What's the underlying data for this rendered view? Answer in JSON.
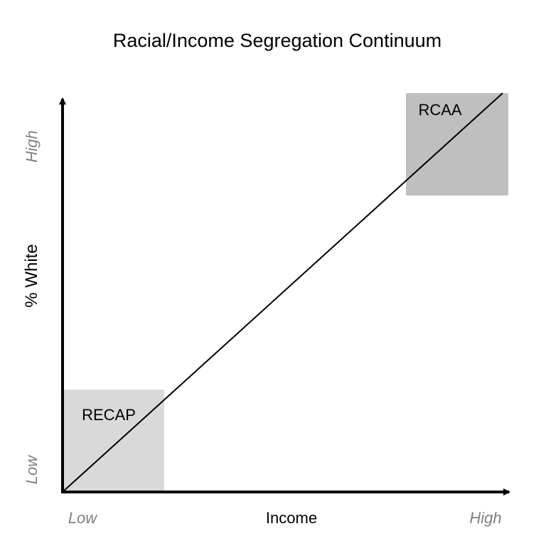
{
  "title": "Racial/Income Segregation Continuum",
  "axes": {
    "x_label": "Income",
    "y_label": "% White",
    "x_low": "Low",
    "x_high": "High",
    "y_low": "Low",
    "y_high": "High"
  },
  "regions": {
    "recap": {
      "label": "RECAP",
      "color": "#d9d9d9"
    },
    "rcaa": {
      "label": "RCAA",
      "color": "#bfbfbf"
    }
  },
  "colors": {
    "axis": "#000000",
    "scale_labels": "#7f7f7f",
    "diagonal": "#000000"
  }
}
